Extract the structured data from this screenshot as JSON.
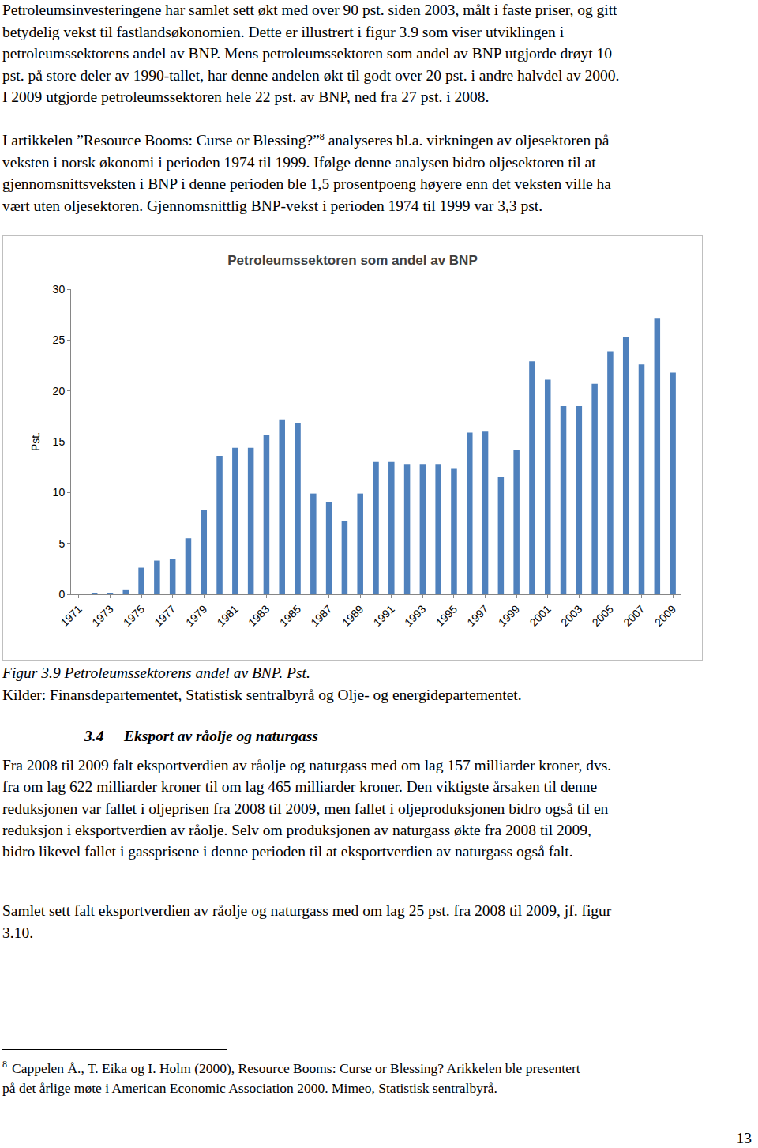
{
  "paragraph_1": [
    "Petroleumsinvesteringene har samlet sett økt med over 90 pst. siden 2003, målt i faste priser, og gitt",
    "betydelig vekst til fastlandsøkonomien. Dette er illustrert i figur 3.9 som viser utviklingen i",
    "petroleumssektorens andel av BNP. Mens petroleumssektoren som andel av BNP utgjorde drøyt 10",
    "pst. på store deler av 1990-tallet, har denne andelen økt til godt over 20 pst. i andre halvdel av 2000.",
    "I 2009 utgjorde petroleumssektoren hele 22 pst. av BNP, ned fra 27 pst. i 2008."
  ],
  "paragraph_2": [
    {
      "text": "I artikkelen ”Resource Booms: Curse or Blessing?”",
      "sup": "8",
      "after": " analyseres bl.a. virkningen av oljesektoren på"
    },
    "veksten i norsk økonomi i perioden 1974 til 1999. Ifølge denne analysen bidro oljesektoren til at",
    "gjennomsnittsveksten i BNP i denne perioden ble 1,5 prosentpoeng høyere enn det veksten ville ha",
    "vært uten oljesektoren. Gjennomsnittlig BNP-vekst i perioden 1974 til 1999 var 3,3 pst."
  ],
  "chart_data": {
    "type": "bar",
    "title": "Petroleumssektoren som andel av BNP",
    "y_label": "Pst.",
    "categories": [
      "1971",
      null,
      "1973",
      null,
      "1975",
      null,
      "1977",
      null,
      "1979",
      null,
      "1981",
      null,
      "1983",
      null,
      "1985",
      null,
      "1987",
      null,
      "1989",
      null,
      "1991",
      null,
      "1993",
      null,
      "1995",
      null,
      "1997",
      null,
      "1999",
      null,
      "2001",
      null,
      "2003",
      null,
      "2005",
      null,
      "2007",
      null,
      "2009"
    ],
    "values": [
      0.0,
      0.1,
      0.1,
      0.4,
      2.6,
      3.3,
      3.5,
      5.5,
      8.3,
      13.6,
      14.4,
      14.4,
      15.7,
      17.2,
      16.8,
      9.9,
      9.1,
      7.2,
      9.9,
      13.0,
      13.0,
      12.8,
      12.8,
      12.8,
      12.4,
      15.9,
      16.0,
      11.5,
      14.2,
      22.9,
      21.1,
      18.5,
      18.5,
      20.7,
      23.9,
      25.3,
      22.6,
      27.1,
      21.8
    ],
    "color": "#4f81bd",
    "ylim": [
      0,
      30
    ],
    "yticks": [
      0,
      5,
      10,
      15,
      20,
      25,
      30
    ],
    "grid": false
  },
  "caption": {
    "title": "Figur 3.9 Petroleumssektorens andel av BNP. Pst.",
    "sources": "Kilder: Finansdepartementet, Statistisk sentralbyrå og Olje- og energidepartementet."
  },
  "section": {
    "number": "3.4",
    "title": "Eksport av råolje og naturgass"
  },
  "paragraph_3": [
    "Fra 2008 til 2009 falt eksportverdien av råolje og naturgass med om lag 157 milliarder kroner, dvs.",
    "fra om lag 622 milliarder kroner til om lag 465 milliarder kroner. Den viktigste årsaken til denne",
    "reduksjonen var fallet i oljeprisen fra 2008 til 2009, men fallet i oljeproduksjonen bidro også til en",
    "reduksjon i eksportverdien av råolje. Selv om produksjonen av naturgass økte fra 2008 til 2009,",
    "bidro likevel fallet i gassprisene i denne perioden til at eksportverdien av naturgass også falt."
  ],
  "paragraph_4": [
    "Samlet sett falt eksportverdien av råolje og naturgass med om lag 25 pst. fra 2008 til 2009, jf. figur",
    "3.10."
  ],
  "footnote": {
    "mark": "8",
    "lines": [
      "Cappelen Å., T. Eika og I. Holm (2000), Resource Booms: Curse or Blessing? Arikkelen ble presentert",
      "på det årlige møte i American Economic  Association 2000. Mimeo, Statistisk sentralbyrå."
    ]
  },
  "page_number": "13"
}
